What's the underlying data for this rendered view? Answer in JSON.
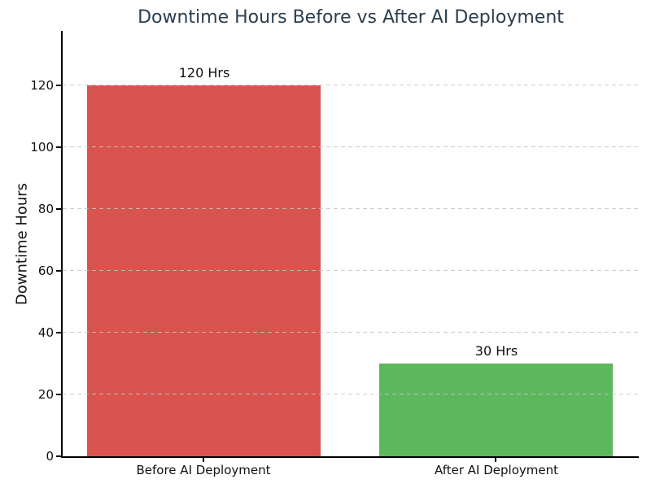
{
  "chart_data": {
    "type": "bar",
    "title": "Downtime Hours Before vs After AI Deployment",
    "title_color": "#2c3e50",
    "ylabel": "Downtime Hours",
    "xlabel": "",
    "categories": [
      "Before AI Deployment",
      "After AI Deployment"
    ],
    "values": [
      120,
      30
    ],
    "value_labels": [
      "120 Hrs",
      "30 Hrs"
    ],
    "bar_colors": [
      "#d9534f",
      "#5cb85c"
    ],
    "yticks": [
      0,
      20,
      40,
      60,
      80,
      100,
      120
    ],
    "ylim": [
      0,
      138
    ],
    "grid": {
      "axis": "y",
      "style": "dashed",
      "color": "#c4c4c4"
    },
    "legend": "none"
  }
}
